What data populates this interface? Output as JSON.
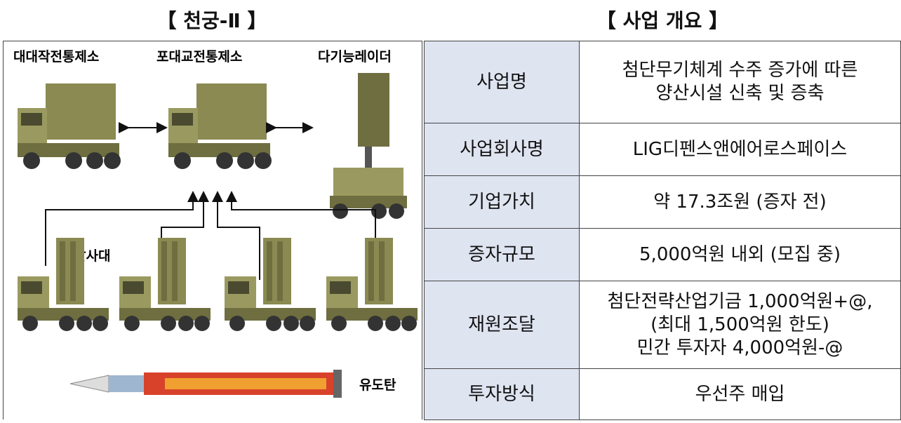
{
  "left_panel": {
    "title": "【 천궁-Ⅱ 】",
    "labels": {
      "battalion_control": "대대작전통제소",
      "battery_control": "포대교전통제소",
      "radar": "다기능레이더",
      "launcher": "발사대",
      "missile": "유도탄"
    }
  },
  "right_panel": {
    "title": "【 사업 개요 】",
    "table": {
      "rows": [
        {
          "label": "사업명",
          "value": [
            "첨단무기체계 수주 증가에 따른",
            "양산시설 신축 및 증축"
          ]
        },
        {
          "label": "사업회사명",
          "value": [
            "LIG디펜스앤에어로스페이스"
          ]
        },
        {
          "label": "기업가치",
          "value": [
            "약 17.3조원 (증자 전)"
          ]
        },
        {
          "label": "증자규모",
          "value": [
            "5,000억원 내외 (모집 중)"
          ]
        },
        {
          "label": "재원조달",
          "value": [
            "첨단전략산업기금 1,000억원+@,",
            "(최대 1,500억원 한도)",
            "민간 투자자 4,000억원-@"
          ]
        },
        {
          "label": "투자방식",
          "value": [
            "우선주 매입"
          ]
        }
      ]
    }
  }
}
